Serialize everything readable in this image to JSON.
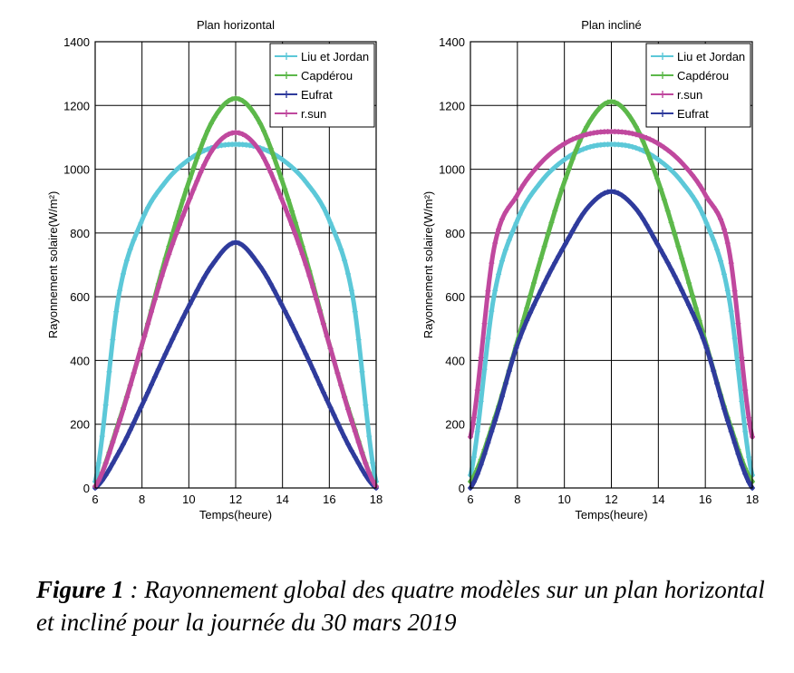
{
  "chart_data": [
    {
      "type": "line",
      "title": "Plan horizontal",
      "xlabel": "Temps(heure)",
      "ylabel": "Rayonnement solaire(W/m²)",
      "xlim": [
        6,
        18
      ],
      "ylim": [
        0,
        1400
      ],
      "xticks": [
        6,
        8,
        10,
        12,
        14,
        16,
        18
      ],
      "yticks": [
        0,
        200,
        400,
        600,
        800,
        1000,
        1200,
        1400
      ],
      "grid": true,
      "legend_position": "top-right",
      "x": [
        6,
        7,
        8,
        9,
        10,
        11,
        12,
        13,
        14,
        15,
        16,
        17,
        18
      ],
      "series": [
        {
          "name": "Liu et Jordan",
          "color": "#5cc8d8",
          "values": [
            20,
            600,
            840,
            960,
            1030,
            1068,
            1078,
            1068,
            1030,
            960,
            840,
            600,
            20
          ]
        },
        {
          "name": "Capdérou",
          "color": "#5cb84a",
          "values": [
            5,
            205,
            450,
            720,
            960,
            1150,
            1222,
            1150,
            960,
            720,
            450,
            205,
            5
          ]
        },
        {
          "name": "Eufrat",
          "color": "#2f3b9c",
          "values": [
            0,
            110,
            260,
            420,
            570,
            700,
            770,
            700,
            570,
            420,
            260,
            110,
            0
          ]
        },
        {
          "name": "r.sun",
          "color": "#c0489e",
          "values": [
            5,
            200,
            450,
            700,
            900,
            1060,
            1115,
            1060,
            900,
            700,
            450,
            200,
            5
          ]
        }
      ]
    },
    {
      "type": "line",
      "title": "Plan incliné",
      "xlabel": "Temps(heure)",
      "ylabel": "Rayonnement solaire(W/m²)",
      "xlim": [
        6,
        18
      ],
      "ylim": [
        0,
        1400
      ],
      "xticks": [
        6,
        8,
        10,
        12,
        14,
        16,
        18
      ],
      "yticks": [
        0,
        200,
        400,
        600,
        800,
        1000,
        1200,
        1400
      ],
      "grid": true,
      "legend_position": "top-right",
      "x": [
        6,
        7,
        8,
        9,
        10,
        11,
        12,
        13,
        14,
        15,
        16,
        17,
        18
      ],
      "series": [
        {
          "name": "Liu et Jordan",
          "color": "#5cc8d8",
          "values": [
            40,
            600,
            840,
            960,
            1030,
            1068,
            1078,
            1068,
            1030,
            960,
            840,
            600,
            40
          ]
        },
        {
          "name": "Capdérou",
          "color": "#5cb84a",
          "values": [
            20,
            210,
            460,
            720,
            960,
            1140,
            1212,
            1140,
            960,
            720,
            460,
            210,
            20
          ]
        },
        {
          "name": "r.sun",
          "color": "#c0489e",
          "values": [
            160,
            750,
            920,
            1020,
            1080,
            1110,
            1118,
            1110,
            1080,
            1020,
            920,
            750,
            160
          ]
        },
        {
          "name": "Eufrat",
          "color": "#2f3b9c",
          "values": [
            0,
            200,
            450,
            620,
            760,
            880,
            930,
            880,
            760,
            620,
            450,
            200,
            0
          ]
        }
      ]
    }
  ],
  "caption": {
    "label": "Figure 1",
    "text": " : Rayonnement global des quatre modèles sur un plan horizontal et incliné pour la journée du 30 mars 2019"
  }
}
